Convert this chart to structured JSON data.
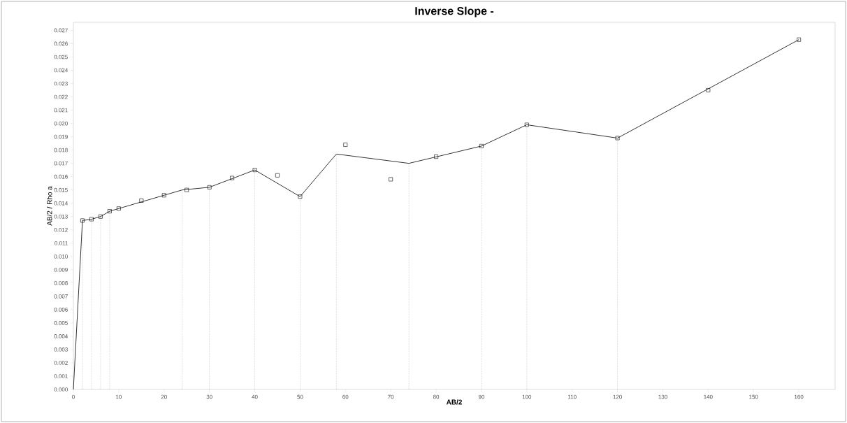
{
  "chart_data": {
    "type": "line",
    "title": "Inverse Slope -",
    "xlabel": "AB/2",
    "ylabel": "AB/2 / Rho a",
    "xlim": [
      0,
      168
    ],
    "ylim": [
      0,
      0.0276
    ],
    "xticks": [
      0,
      10,
      20,
      30,
      40,
      50,
      60,
      70,
      80,
      90,
      100,
      110,
      120,
      130,
      140,
      150,
      160
    ],
    "yticks": [
      {
        "value": 0,
        "label": "0.000"
      },
      {
        "value": 0.001,
        "label": "0.001"
      },
      {
        "value": 0.002,
        "label": "0.002"
      },
      {
        "value": 0.003,
        "label": "0.003"
      },
      {
        "value": 0.004,
        "label": "0.004"
      },
      {
        "value": 0.005,
        "label": "0.005"
      },
      {
        "value": 0.006,
        "label": "0.006"
      },
      {
        "value": 0.007,
        "label": "0.007"
      },
      {
        "value": 0.008,
        "label": "0.008"
      },
      {
        "value": 0.009,
        "label": "0.009"
      },
      {
        "value": 0.01,
        "label": "0.010"
      },
      {
        "value": 0.011,
        "label": "0.011"
      },
      {
        "value": 0.012,
        "label": "0.012"
      },
      {
        "value": 0.013,
        "label": "0.013"
      },
      {
        "value": 0.014,
        "label": "0.014"
      },
      {
        "value": 0.015,
        "label": "0.015"
      },
      {
        "value": 0.016,
        "label": "0.016"
      },
      {
        "value": 0.017,
        "label": "0.017"
      },
      {
        "value": 0.018,
        "label": "0.018"
      },
      {
        "value": 0.019,
        "label": "0.019"
      },
      {
        "value": 0.02,
        "label": "0.020"
      },
      {
        "value": 0.021,
        "label": "0.021"
      },
      {
        "value": 0.022,
        "label": "0.022"
      },
      {
        "value": 0.023,
        "label": "0.023"
      },
      {
        "value": 0.024,
        "label": "0.024"
      },
      {
        "value": 0.025,
        "label": "0.025"
      },
      {
        "value": 0.026,
        "label": "0.026"
      },
      {
        "value": 0.027,
        "label": "0.027"
      }
    ],
    "series": [
      {
        "color": "#000000",
        "marker": "none",
        "line_style": "solid",
        "x": [
          0,
          2,
          4,
          6,
          8,
          24,
          30,
          40,
          50,
          58,
          74,
          90,
          100,
          120,
          160
        ],
        "values": [
          0,
          0.0127,
          0.0128,
          0.013,
          0.0134,
          0.015,
          0.0152,
          0.0165,
          0.0145,
          0.0177,
          0.017,
          0.0183,
          0.0199,
          0.0189,
          0.0263
        ]
      },
      {
        "type": "scatter",
        "color": "#000000",
        "marker": "square",
        "x": [
          2,
          4,
          6,
          8,
          10,
          15,
          20,
          25,
          30,
          35,
          40,
          45,
          50,
          60,
          70,
          80,
          90,
          100,
          120,
          140,
          160
        ],
        "values": [
          0.0127,
          0.0128,
          0.013,
          0.0134,
          0.0136,
          0.0142,
          0.0146,
          0.015,
          0.0152,
          0.0159,
          0.0165,
          0.0161,
          0.0145,
          0.0184,
          0.0158,
          0.0175,
          0.0183,
          0.0199,
          0.0189,
          0.0225,
          0.0263
        ]
      }
    ],
    "ref_lines": [
      {
        "axis": "x",
        "value": 2,
        "line_style": "dotted",
        "color": "#555555"
      },
      {
        "axis": "x",
        "value": 4,
        "line_style": "dotted",
        "color": "#555555"
      },
      {
        "axis": "x",
        "value": 6,
        "line_style": "dotted",
        "color": "#555555"
      },
      {
        "axis": "x",
        "value": 8,
        "line_style": "dotted",
        "color": "#555555"
      },
      {
        "axis": "x",
        "value": 24,
        "line_style": "dotted",
        "color": "#555555"
      },
      {
        "axis": "x",
        "value": 30,
        "line_style": "dotted",
        "color": "#555555"
      },
      {
        "axis": "x",
        "value": 40,
        "line_style": "dotted",
        "color": "#555555"
      },
      {
        "axis": "x",
        "value": 50,
        "line_style": "dotted",
        "color": "#555555"
      },
      {
        "axis": "x",
        "value": 58,
        "line_style": "dotted",
        "color": "#555555"
      },
      {
        "axis": "x",
        "value": 74,
        "line_style": "dotted",
        "color": "#555555"
      },
      {
        "axis": "x",
        "value": 90,
        "line_style": "dotted",
        "color": "#555555"
      },
      {
        "axis": "x",
        "value": 100,
        "line_style": "dotted",
        "color": "#555555"
      },
      {
        "axis": "x",
        "value": 120,
        "line_style": "dotted",
        "color": "#555555"
      }
    ]
  }
}
